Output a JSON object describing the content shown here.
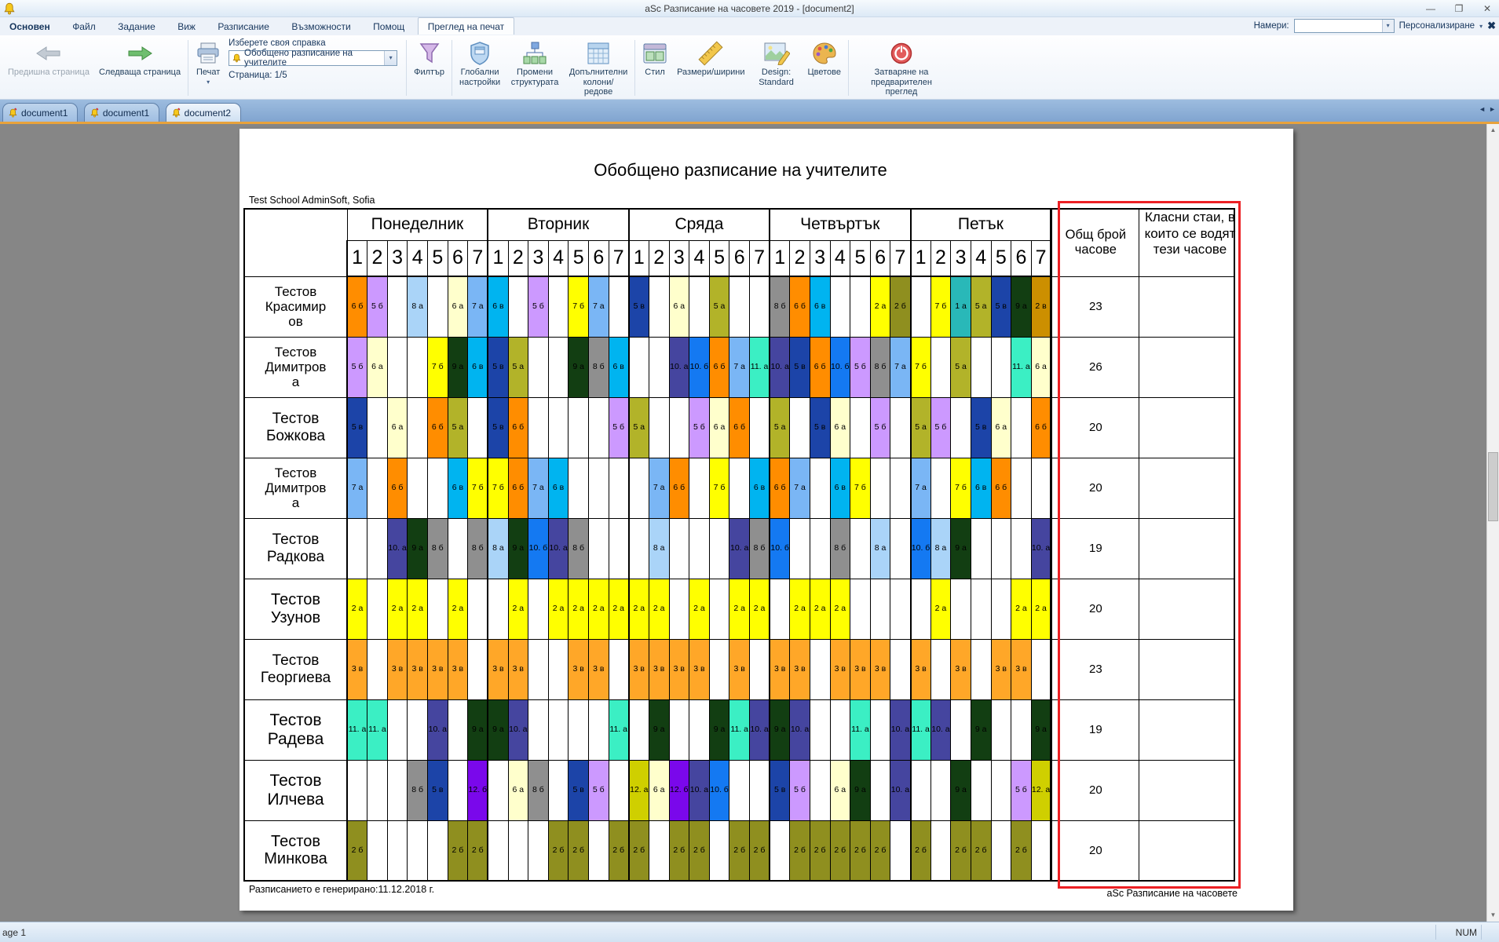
{
  "window": {
    "title": "aSc Разписание на часовете 2019  - [document2]"
  },
  "icons": {
    "dropdown": "▾",
    "minimize": "—",
    "restore": "❐",
    "close": "✕",
    "ribbon_close": "✖",
    "tab_prev": "◄",
    "tab_next": "►",
    "scroll_up": "▲",
    "scroll_down": "▼"
  },
  "ribbon": {
    "tabs": [
      {
        "label": "Основен"
      },
      {
        "label": "Файл"
      },
      {
        "label": "Задание"
      },
      {
        "label": "Виж"
      },
      {
        "label": "Разписание"
      },
      {
        "label": "Възможности"
      },
      {
        "label": "Помощ"
      },
      {
        "label": "Преглед на печат"
      }
    ],
    "find_label": "Намери:",
    "personalize_label": "Персонализиране",
    "prev_page": "Предишна страница",
    "next_page": "Следваща страница",
    "print_label": "Печат",
    "report_picker_label": "Изберете своя справка",
    "report_value": "Обобщено разписание на учителите",
    "page_indicator": "Страница: 1/5",
    "filter": "Филтър",
    "global_settings": "Глобални настройки",
    "change_structure": "Промени структурата",
    "extra_cols": "Допълнителни колони/редове",
    "style": "Стил",
    "sizes": "Размери/ширини",
    "design": "Design: Standard",
    "colors": "Цветове",
    "close_preview": "Затваряне на предварителен преглед"
  },
  "doc_tabs": [
    {
      "label": "document1",
      "active": false
    },
    {
      "label": "document1",
      "active": false
    },
    {
      "label": "document2",
      "active": true
    }
  ],
  "preview": {
    "title": "Обобщено разписание на учителите",
    "subtitle": "Test School AdminSoft, Sofia",
    "footer_left": "Разписанието е генерирано:11.12.2018 г.",
    "footer_right": "aSc Разписание на часовете"
  },
  "schedule": {
    "days": [
      "Понеделник",
      "Вторник",
      "Сряда",
      "Четвъртък",
      "Петък"
    ],
    "periods": [
      "1",
      "2",
      "3",
      "4",
      "5",
      "6",
      "7"
    ],
    "total_header": "Общ брой часове",
    "rooms_header": "Класни стаи, в които се водят тези часове",
    "highlight_color": "#EC2024",
    "classes": {
      "1а": {
        "label": "1 а",
        "color": "#29B8B8"
      },
      "2а": {
        "label": "2 а",
        "color": "#FFFF00"
      },
      "2б": {
        "label": "2 б",
        "color": "#8F8F1F"
      },
      "2в": {
        "label": "2 в",
        "color": "#CC8F00"
      },
      "3в": {
        "label": "3 в",
        "color": "#FFA728"
      },
      "5а": {
        "label": "5 а",
        "color": "#B2B329"
      },
      "5б": {
        "label": "5 б",
        "color": "#CC99FF"
      },
      "5в": {
        "label": "5 в",
        "color": "#1C44A8"
      },
      "6а": {
        "label": "6 а",
        "color": "#FFFFCC"
      },
      "6б": {
        "label": "6 б",
        "color": "#FF8D00"
      },
      "6в": {
        "label": "6 в",
        "color": "#00B4F0"
      },
      "7а": {
        "label": "7 а",
        "color": "#7AB6F5"
      },
      "7б": {
        "label": "7 б",
        "color": "#FFFF00"
      },
      "8а": {
        "label": "8 а",
        "color": "#AAD4F8"
      },
      "8б": {
        "label": "8 б",
        "color": "#8F8F8F"
      },
      "9а": {
        "label": "9 а",
        "color": "#123E12"
      },
      "10а": {
        "label": "10. а",
        "color": "#45459F"
      },
      "10б": {
        "label": "10. б",
        "color": "#1479F2"
      },
      "11а": {
        "label": "11. а",
        "color": "#3BEFC4"
      },
      "12а": {
        "label": "12. а",
        "color": "#CFCF00"
      },
      "12б": {
        "label": "12. б",
        "color": "#7A08EB"
      }
    },
    "rows": [
      {
        "teacher": "Тестов Красимиров",
        "name_lines": [
          "Тестов",
          "Красимир",
          "ов"
        ],
        "name_size": 17,
        "total": "23",
        "rooms": "",
        "cells": [
          "6б",
          "5б",
          "",
          "8а",
          "",
          "6а",
          "7а",
          "6в",
          "",
          "5б",
          "",
          "7б",
          "7а",
          "",
          "5в",
          "",
          "6а",
          "",
          "5а",
          "",
          "",
          "8б",
          "6б",
          "6в",
          "",
          "",
          "2а",
          "2б",
          "",
          "7б",
          "1а",
          "5а",
          "5в",
          "9а",
          "2в"
        ]
      },
      {
        "teacher": "Тестов Димитрова",
        "name_lines": [
          "Тестов",
          "Димитров",
          "а"
        ],
        "name_size": 17,
        "total": "26",
        "rooms": "",
        "cells": [
          "5б",
          "6а",
          "",
          "",
          "7б",
          "9а",
          "6в",
          "5в",
          "5а",
          "",
          "",
          "9а",
          "8б",
          "6в",
          "",
          "",
          "10а",
          "10б",
          "6б",
          "7а",
          "11а",
          "10а",
          "5в",
          "6б",
          "10б",
          "5б",
          "8б",
          "7а",
          "7б",
          "",
          "5а",
          "",
          "",
          "11а",
          "6а"
        ]
      },
      {
        "teacher": "Тестов Божкова",
        "name_lines": [
          "Тестов",
          "Божкова"
        ],
        "name_size": 19,
        "total": "20",
        "rooms": "",
        "cells": [
          "5в",
          "",
          "6а",
          "",
          "6б",
          "5а",
          "",
          "5в",
          "6б",
          "",
          "",
          "",
          "",
          "5б",
          "5а",
          "",
          "",
          "5б",
          "6а",
          "6б",
          "",
          "5а",
          "",
          "5в",
          "6а",
          "",
          "5б",
          "",
          "5а",
          "5б",
          "",
          "5в",
          "6а",
          "",
          "6б"
        ]
      },
      {
        "teacher": "Тестов Димитрова",
        "name_lines": [
          "Тестов",
          "Димитров",
          "а"
        ],
        "name_size": 17,
        "total": "20",
        "rooms": "",
        "cells": [
          "7а",
          "",
          "6б",
          "",
          "",
          "6в",
          "7б",
          "7б",
          "6б",
          "7а",
          "6в",
          "",
          "",
          "",
          "",
          "7а",
          "6б",
          "",
          "7б",
          "",
          "6в",
          "6б",
          "7а",
          "",
          "6в",
          "7б",
          "",
          "",
          "7а",
          "",
          "7б",
          "6в",
          "6б",
          "",
          ""
        ]
      },
      {
        "teacher": "Тестов Радкова",
        "name_lines": [
          "Тестов",
          "Радкова"
        ],
        "name_size": 19,
        "total": "19",
        "rooms": "",
        "cells": [
          "",
          "",
          "10а",
          "9а",
          "8б",
          "",
          "8б",
          "8а",
          "9а",
          "10б",
          "10а",
          "8б",
          "",
          "",
          "",
          "8а",
          "",
          "",
          "",
          "10а",
          "8б",
          "10б",
          "",
          "",
          "8б",
          "",
          "8а",
          "",
          "10б",
          "8а",
          "9а",
          "",
          "",
          "",
          "10а"
        ]
      },
      {
        "teacher": "Тестов Узунов",
        "name_lines": [
          "Тестов",
          "Узунов"
        ],
        "name_size": 20,
        "total": "20",
        "rooms": "",
        "cells": [
          "2а",
          "",
          "2а",
          "2а",
          "",
          "2а",
          "",
          "",
          "2а",
          "",
          "2а",
          "2а",
          "2а",
          "2а",
          "2а",
          "2а",
          "",
          "2а",
          "",
          "2а",
          "2а",
          "",
          "2а",
          "2а",
          "2а",
          "",
          "",
          "",
          "",
          "2а",
          "",
          "",
          "",
          "2а",
          "2а"
        ]
      },
      {
        "teacher": "Тестов Георгиева",
        "name_lines": [
          "Тестов",
          "Георгиева"
        ],
        "name_size": 19,
        "total": "23",
        "rooms": "",
        "cells": [
          "3в",
          "",
          "3в",
          "3в",
          "3в",
          "3в",
          "",
          "3в",
          "3в",
          "",
          "",
          "3в",
          "3в",
          "",
          "3в",
          "3в",
          "3в",
          "3в",
          "",
          "3в",
          "",
          "3в",
          "3в",
          "",
          "3в",
          "3в",
          "3в",
          "",
          "3в",
          "",
          "3в",
          "",
          "3в",
          "3в",
          ""
        ]
      },
      {
        "teacher": "Тестов Радева",
        "name_lines": [
          "Тестов",
          "Радева"
        ],
        "name_size": 21,
        "total": "19",
        "rooms": "",
        "cells": [
          "11а",
          "11а",
          "",
          "",
          "10а",
          "",
          "9а",
          "9а",
          "10а",
          "",
          "",
          "",
          "",
          "11а",
          "",
          "9а",
          "",
          "",
          "9а",
          "11а",
          "10а",
          "9а",
          "10а",
          "",
          "",
          "11а",
          "",
          "10а",
          "11а",
          "10а",
          "",
          "9а",
          "",
          "",
          "9а"
        ]
      },
      {
        "teacher": "Тестов Илчева",
        "name_lines": [
          "Тестов",
          "Илчева"
        ],
        "name_size": 21,
        "total": "20",
        "rooms": "",
        "cells": [
          "",
          "",
          "",
          "8б",
          "5в",
          "",
          "12б",
          "",
          "6а",
          "8б",
          "",
          "5в",
          "5б",
          "",
          "12а",
          "6а",
          "12б",
          "10а",
          "10б",
          "",
          "",
          "5в",
          "5б",
          "",
          "6а",
          "9а",
          "",
          "10а",
          "",
          "",
          "9а",
          "",
          "",
          "5б",
          "12а"
        ]
      },
      {
        "teacher": "Тестов Минкова",
        "name_lines": [
          "Тестов",
          "Минкова"
        ],
        "name_size": 20,
        "total": "20",
        "rooms": "",
        "cells": [
          "2б",
          "",
          "",
          "",
          "",
          "2б",
          "2б",
          "",
          "",
          "",
          "2б",
          "2б",
          "",
          "2б",
          "2б",
          "",
          "2б",
          "2б",
          "",
          "2б",
          "2б",
          "",
          "2б",
          "2б",
          "2б",
          "2б",
          "2б",
          "",
          "2б",
          "",
          "2б",
          "2б",
          "",
          "2б",
          ""
        ]
      }
    ]
  },
  "status_bar": {
    "left": "age 1",
    "right": "NUM"
  }
}
